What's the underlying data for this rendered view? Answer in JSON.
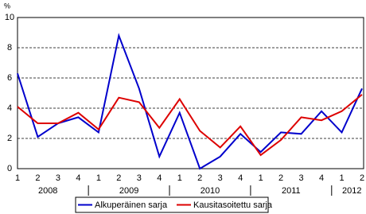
{
  "chart_data": {
    "type": "line",
    "y_unit": "%",
    "categories": [
      "1",
      "2",
      "3",
      "4",
      "1",
      "2",
      "3",
      "4",
      "1",
      "2",
      "3",
      "4",
      "1",
      "2",
      "3",
      "4",
      "1",
      "2"
    ],
    "groups": [
      {
        "label": "2008",
        "span": 4
      },
      {
        "label": "2009",
        "span": 4
      },
      {
        "label": "2010",
        "span": 4
      },
      {
        "label": "2011",
        "span": 4
      },
      {
        "label": "2012",
        "span": 2
      }
    ],
    "series": [
      {
        "name": "Alkuperäinen sarja",
        "color": "#0000cc",
        "values": [
          6.3,
          2.1,
          3.0,
          3.4,
          2.4,
          8.8,
          5.3,
          0.8,
          3.7,
          0.0,
          0.8,
          2.3,
          1.1,
          2.4,
          2.3,
          3.8,
          2.4,
          5.3
        ]
      },
      {
        "name": "Kausitasoitettu sarja",
        "color": "#dd0000",
        "values": [
          4.1,
          3.0,
          3.0,
          3.7,
          2.6,
          4.7,
          4.4,
          2.7,
          4.6,
          2.5,
          1.4,
          2.8,
          0.9,
          1.9,
          3.4,
          3.2,
          3.8,
          4.9
        ]
      }
    ],
    "ylim": [
      0,
      10
    ],
    "yticks": [
      0,
      2,
      4,
      6,
      8,
      10
    ],
    "grid": true,
    "legend": "bottom"
  }
}
